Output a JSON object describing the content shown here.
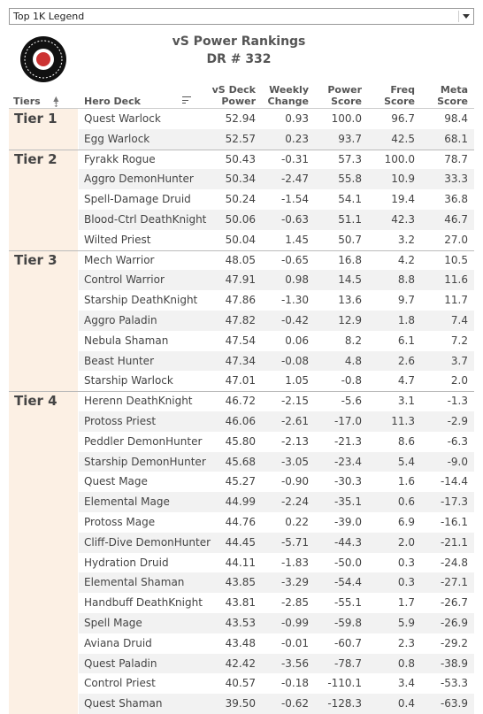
{
  "dropdown": "Top 1K Legend",
  "header": {
    "title": "vS Power Rankings",
    "subtitle": "DR # 332"
  },
  "table": {
    "columns": [
      [
        "Tiers"
      ],
      [
        "Hero Deck"
      ],
      [
        "vS Deck",
        "Power"
      ],
      [
        "Weekly",
        "Change"
      ],
      [
        "Power",
        "Score"
      ],
      [
        "Freq",
        "Score"
      ],
      [
        "Meta",
        "Score"
      ]
    ],
    "tiers": [
      {
        "name": "Tier 1",
        "rows": [
          [
            "Quest Warlock",
            "52.94",
            "0.93",
            "100.0",
            "96.7",
            "98.4"
          ],
          [
            "Egg Warlock",
            "52.57",
            "0.23",
            "93.7",
            "42.5",
            "68.1"
          ]
        ]
      },
      {
        "name": "Tier 2",
        "rows": [
          [
            "Fyrakk Rogue",
            "50.43",
            "-0.31",
            "57.3",
            "100.0",
            "78.7"
          ],
          [
            "Aggro DemonHunter",
            "50.34",
            "-2.47",
            "55.8",
            "10.9",
            "33.3"
          ],
          [
            "Spell-Damage Druid",
            "50.24",
            "-1.54",
            "54.1",
            "19.4",
            "36.8"
          ],
          [
            "Blood-Ctrl DeathKnight",
            "50.06",
            "-0.63",
            "51.1",
            "42.3",
            "46.7"
          ],
          [
            "Wilted Priest",
            "50.04",
            "1.45",
            "50.7",
            "3.2",
            "27.0"
          ]
        ]
      },
      {
        "name": "Tier 3",
        "rows": [
          [
            "Mech Warrior",
            "48.05",
            "-0.65",
            "16.8",
            "4.2",
            "10.5"
          ],
          [
            "Control Warrior",
            "47.91",
            "0.98",
            "14.5",
            "8.8",
            "11.6"
          ],
          [
            "Starship DeathKnight",
            "47.86",
            "-1.30",
            "13.6",
            "9.7",
            "11.7"
          ],
          [
            "Aggro Paladin",
            "47.82",
            "-0.42",
            "12.9",
            "1.8",
            "7.4"
          ],
          [
            "Nebula Shaman",
            "47.54",
            "0.06",
            "8.2",
            "6.1",
            "7.2"
          ],
          [
            "Beast Hunter",
            "47.34",
            "-0.08",
            "4.8",
            "2.6",
            "3.7"
          ],
          [
            "Starship Warlock",
            "47.01",
            "1.05",
            "-0.8",
            "4.7",
            "2.0"
          ]
        ]
      },
      {
        "name": "Tier 4",
        "rows": [
          [
            "Herenn DeathKnight",
            "46.72",
            "-2.15",
            "-5.6",
            "3.1",
            "-1.3"
          ],
          [
            "Protoss Priest",
            "46.06",
            "-2.61",
            "-17.0",
            "11.3",
            "-2.9"
          ],
          [
            "Peddler DemonHunter",
            "45.80",
            "-2.13",
            "-21.3",
            "8.6",
            "-6.3"
          ],
          [
            "Starship DemonHunter",
            "45.68",
            "-3.05",
            "-23.4",
            "5.4",
            "-9.0"
          ],
          [
            "Quest Mage",
            "45.27",
            "-0.90",
            "-30.3",
            "1.6",
            "-14.4"
          ],
          [
            "Elemental Mage",
            "44.99",
            "-2.24",
            "-35.1",
            "0.6",
            "-17.3"
          ],
          [
            "Protoss Mage",
            "44.76",
            "0.22",
            "-39.0",
            "6.9",
            "-16.1"
          ],
          [
            "Cliff-Dive DemonHunter",
            "44.45",
            "-5.71",
            "-44.3",
            "2.0",
            "-21.1"
          ],
          [
            "Hydration Druid",
            "44.11",
            "-1.83",
            "-50.0",
            "0.3",
            "-24.8"
          ],
          [
            "Elemental Shaman",
            "43.85",
            "-3.29",
            "-54.4",
            "0.3",
            "-27.1"
          ],
          [
            "Handbuff DeathKnight",
            "43.81",
            "-2.85",
            "-55.1",
            "1.7",
            "-26.7"
          ],
          [
            "Spell Mage",
            "43.53",
            "-0.99",
            "-59.8",
            "5.9",
            "-26.9"
          ],
          [
            "Aviana Druid",
            "43.48",
            "-0.01",
            "-60.7",
            "2.3",
            "-29.2"
          ],
          [
            "Quest Paladin",
            "42.42",
            "-3.56",
            "-78.7",
            "0.8",
            "-38.9"
          ],
          [
            "Control Priest",
            "40.57",
            "-0.18",
            "-110.1",
            "3.4",
            "-53.3"
          ],
          [
            "Quest Shaman",
            "39.50",
            "-0.62",
            "-128.3",
            "0.4",
            "-63.9"
          ]
        ]
      }
    ]
  }
}
